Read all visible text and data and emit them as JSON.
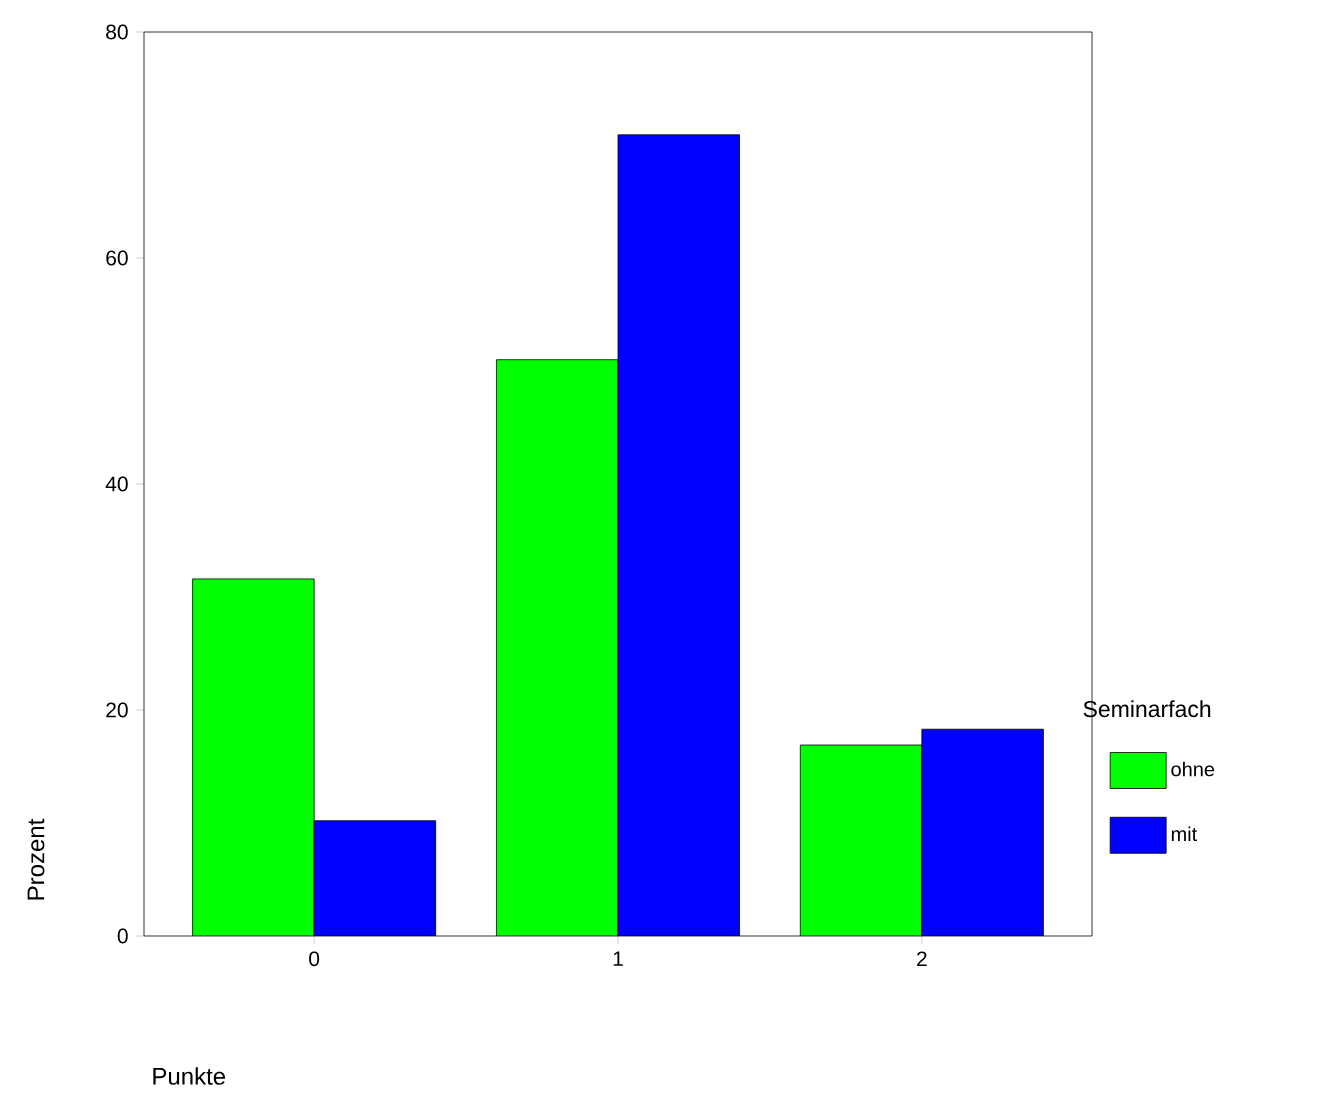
{
  "chart_data": {
    "type": "bar",
    "xlabel": "Punkte",
    "ylabel": "Prozent",
    "legend_title": "Seminarfach",
    "categories": [
      "0",
      "1",
      "2"
    ],
    "series": [
      {
        "name": "ohne",
        "color": "#00ff00",
        "values": [
          31.6,
          51.0,
          16.9
        ]
      },
      {
        "name": "mit",
        "color": "#0000ff",
        "values": [
          10.2,
          70.9,
          18.3
        ]
      }
    ],
    "ylim": [
      0,
      80
    ],
    "yticks": [
      0,
      20,
      40,
      60,
      80
    ],
    "legend": "right",
    "grid": false
  }
}
